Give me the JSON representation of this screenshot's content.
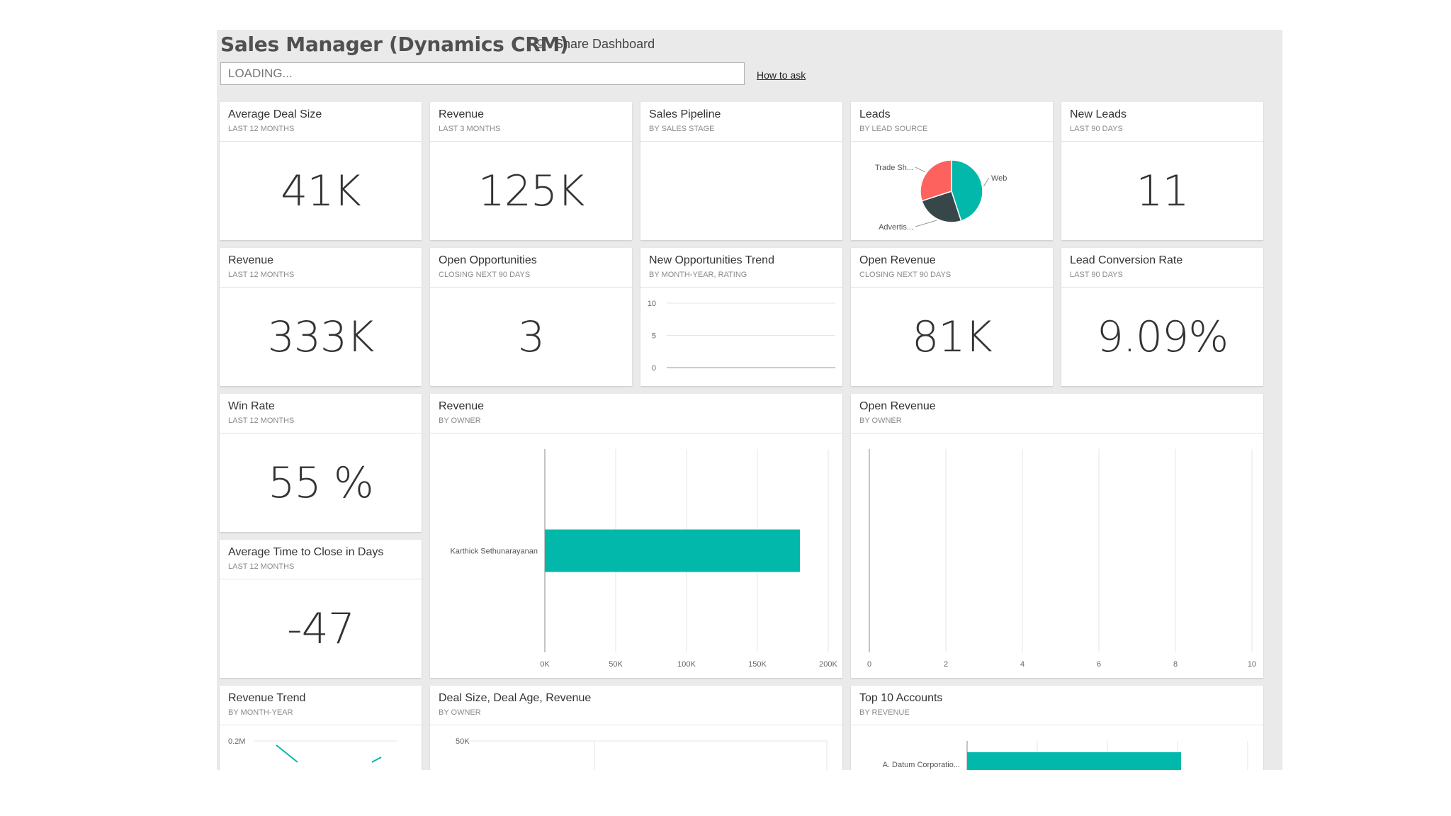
{
  "header": {
    "title": "Sales Manager (Dynamics CRM)",
    "share_label": "Share Dashboard",
    "qa_placeholder": "LOADING...",
    "how_to_ask": "How to ask"
  },
  "colors": {
    "teal": "#01b8aa",
    "red": "#fd625e",
    "dark": "#374649"
  },
  "tiles": {
    "avg_deal": {
      "title": "Average Deal Size",
      "subtitle": "LAST 12 MONTHS",
      "value": "41K"
    },
    "revenue3": {
      "title": "Revenue",
      "subtitle": "LAST 3 MONTHS",
      "value": "125K"
    },
    "pipeline": {
      "title": "Sales Pipeline",
      "subtitle": "BY SALES STAGE"
    },
    "leads": {
      "title": "Leads",
      "subtitle": "BY LEAD SOURCE"
    },
    "new_leads": {
      "title": "New Leads",
      "subtitle": "LAST 90 DAYS",
      "value": "11"
    },
    "revenue12": {
      "title": "Revenue",
      "subtitle": "LAST 12 MONTHS",
      "value": "333K"
    },
    "open_opps": {
      "title": "Open Opportunities",
      "subtitle": "CLOSING NEXT 90 DAYS",
      "value": "3"
    },
    "new_opps_trend": {
      "title": "New Opportunities Trend",
      "subtitle": "BY MONTH-YEAR, RATING"
    },
    "open_revenue": {
      "title": "Open Revenue",
      "subtitle": "CLOSING NEXT 90 DAYS",
      "value": "81K"
    },
    "lead_conv": {
      "title": "Lead Conversion Rate",
      "subtitle": "LAST 90 DAYS",
      "value": "9.09%"
    },
    "win_rate": {
      "title": "Win Rate",
      "subtitle": "LAST 12 MONTHS",
      "value": "55 %"
    },
    "rev_owner": {
      "title": "Revenue",
      "subtitle": "BY OWNER"
    },
    "open_rev_owner": {
      "title": "Open Revenue",
      "subtitle": "BY OWNER"
    },
    "avg_close": {
      "title": "Average Time to Close in Days",
      "subtitle": "LAST 12 MONTHS",
      "value": "-47"
    },
    "rev_trend": {
      "title": "Revenue Trend",
      "subtitle": "BY MONTH-YEAR"
    },
    "deal_size": {
      "title": "Deal Size, Deal Age, Revenue",
      "subtitle": "BY OWNER"
    },
    "top10": {
      "title": "Top 10 Accounts",
      "subtitle": "BY REVENUE"
    }
  },
  "chart_data": [
    {
      "id": "leads",
      "type": "pie",
      "labels": [
        "Web",
        "Advertis...",
        "Trade Sh..."
      ],
      "values": [
        45,
        25,
        30
      ],
      "colors": [
        "#01b8aa",
        "#374649",
        "#fd625e"
      ]
    },
    {
      "id": "new_opps_trend",
      "type": "line",
      "yticks": [
        10,
        5,
        0
      ],
      "ylim": [
        0,
        10
      ],
      "series": []
    },
    {
      "id": "rev_owner",
      "type": "bar",
      "orientation": "horizontal",
      "categories": [
        "Karthick Sethunarayanan"
      ],
      "values": [
        180000
      ],
      "xticks": [
        "0K",
        "50K",
        "100K",
        "150K",
        "200K"
      ],
      "xlim": [
        0,
        200000
      ]
    },
    {
      "id": "open_rev_owner",
      "type": "bar",
      "orientation": "horizontal",
      "categories": [],
      "values": [],
      "xticks": [
        "0",
        "2",
        "4",
        "6",
        "8",
        "10"
      ],
      "xlim": [
        0,
        10
      ]
    },
    {
      "id": "rev_trend",
      "type": "line",
      "yticks": [
        "0.2M"
      ]
    },
    {
      "id": "deal_size",
      "type": "scatter",
      "yticks": [
        "50K"
      ]
    },
    {
      "id": "top10",
      "type": "bar",
      "orientation": "horizontal",
      "categories": [
        "A. Datum Corporatio..."
      ]
    }
  ]
}
